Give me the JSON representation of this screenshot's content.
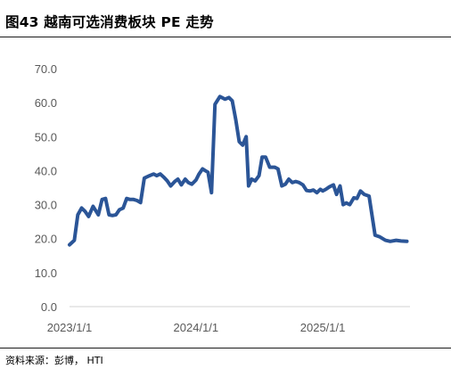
{
  "title": "图43 越南可选消费板块 PE 走势",
  "source": "资料来源：彭博， HTI",
  "chart_data": {
    "type": "line",
    "title": "图43 越南可选消费板块 PE 走势",
    "xlabel": "",
    "ylabel": "",
    "ylim": [
      0,
      70
    ],
    "yticks": [
      "0.0",
      "10.0",
      "20.0",
      "30.0",
      "40.0",
      "50.0",
      "60.0",
      "70.0"
    ],
    "xticks": [
      "2023/1/1",
      "2024/1/1",
      "2025/1/1"
    ],
    "xlim": [
      "2023-01-01",
      "2025-09-10"
    ],
    "grid": false,
    "legend": "none",
    "line_color": "#2b5597",
    "series": [
      {
        "x": [
          "2023-01-01",
          "2023-01-15",
          "2023-01-25",
          "2023-02-05",
          "2023-02-15",
          "2023-02-25",
          "2023-03-10",
          "2023-03-25",
          "2023-04-05",
          "2023-04-15",
          "2023-04-25",
          "2023-05-05",
          "2023-05-15",
          "2023-05-25",
          "2023-06-05",
          "2023-06-15",
          "2023-06-25",
          "2023-07-05",
          "2023-07-15",
          "2023-07-25",
          "2023-08-05",
          "2023-08-20",
          "2023-09-01",
          "2023-09-10",
          "2023-09-20",
          "2023-10-01",
          "2023-10-10",
          "2023-10-20",
          "2023-11-01",
          "2023-11-10",
          "2023-11-20",
          "2023-12-01",
          "2023-12-10",
          "2023-12-20",
          "2024-01-01",
          "2024-01-10",
          "2024-01-20",
          "2024-01-28",
          "2024-02-05",
          "2024-02-15",
          "2024-02-25",
          "2024-03-10",
          "2024-03-25",
          "2024-04-05",
          "2024-04-15",
          "2024-04-25",
          "2024-05-05",
          "2024-05-15",
          "2024-05-25",
          "2024-06-01",
          "2024-06-10",
          "2024-06-20",
          "2024-07-01",
          "2024-07-10",
          "2024-07-20",
          "2024-08-01",
          "2024-08-15",
          "2024-08-25",
          "2024-09-05",
          "2024-09-15",
          "2024-09-25",
          "2024-10-05",
          "2024-10-15",
          "2024-10-25",
          "2024-11-05",
          "2024-11-15",
          "2024-11-25",
          "2024-12-05",
          "2024-12-15",
          "2024-12-25",
          "2025-01-01",
          "2025-01-10",
          "2025-01-20",
          "2025-02-01",
          "2025-02-10",
          "2025-02-20",
          "2025-03-01",
          "2025-03-10",
          "2025-03-20",
          "2025-04-01",
          "2025-04-10",
          "2025-04-20",
          "2025-05-01",
          "2025-05-15",
          "2025-06-01",
          "2025-06-15",
          "2025-07-01",
          "2025-07-15",
          "2025-08-01",
          "2025-08-15",
          "2025-09-01"
        ],
        "values": [
          18.2,
          19.5,
          27,
          29,
          28,
          26.5,
          29.5,
          27,
          31.5,
          31.8,
          27,
          26.8,
          27,
          28.5,
          29,
          31.8,
          31.5,
          31.5,
          31.2,
          30.6,
          37.8,
          38.5,
          39,
          38.5,
          39,
          38,
          37,
          35.5,
          36.8,
          37.5,
          35.8,
          37.5,
          36.5,
          36,
          37.2,
          39,
          40.5,
          40,
          39.5,
          33.5,
          59.5,
          61.8,
          61,
          61.5,
          60.5,
          55,
          48.5,
          47.5,
          50,
          35.5,
          37.5,
          37,
          38.5,
          44,
          44,
          41,
          41,
          40.5,
          35.5,
          36,
          37.5,
          36.5,
          36.8,
          36.5,
          35.8,
          34.2,
          34,
          34.3,
          33.5,
          34.5,
          34,
          34.5,
          35.2,
          35.8,
          33,
          35.5,
          30,
          30.5,
          30,
          32,
          31.8,
          34,
          33,
          32.5,
          21,
          20.5,
          19.5,
          19.2,
          19.5,
          19.3,
          19.2
        ]
      }
    ]
  }
}
